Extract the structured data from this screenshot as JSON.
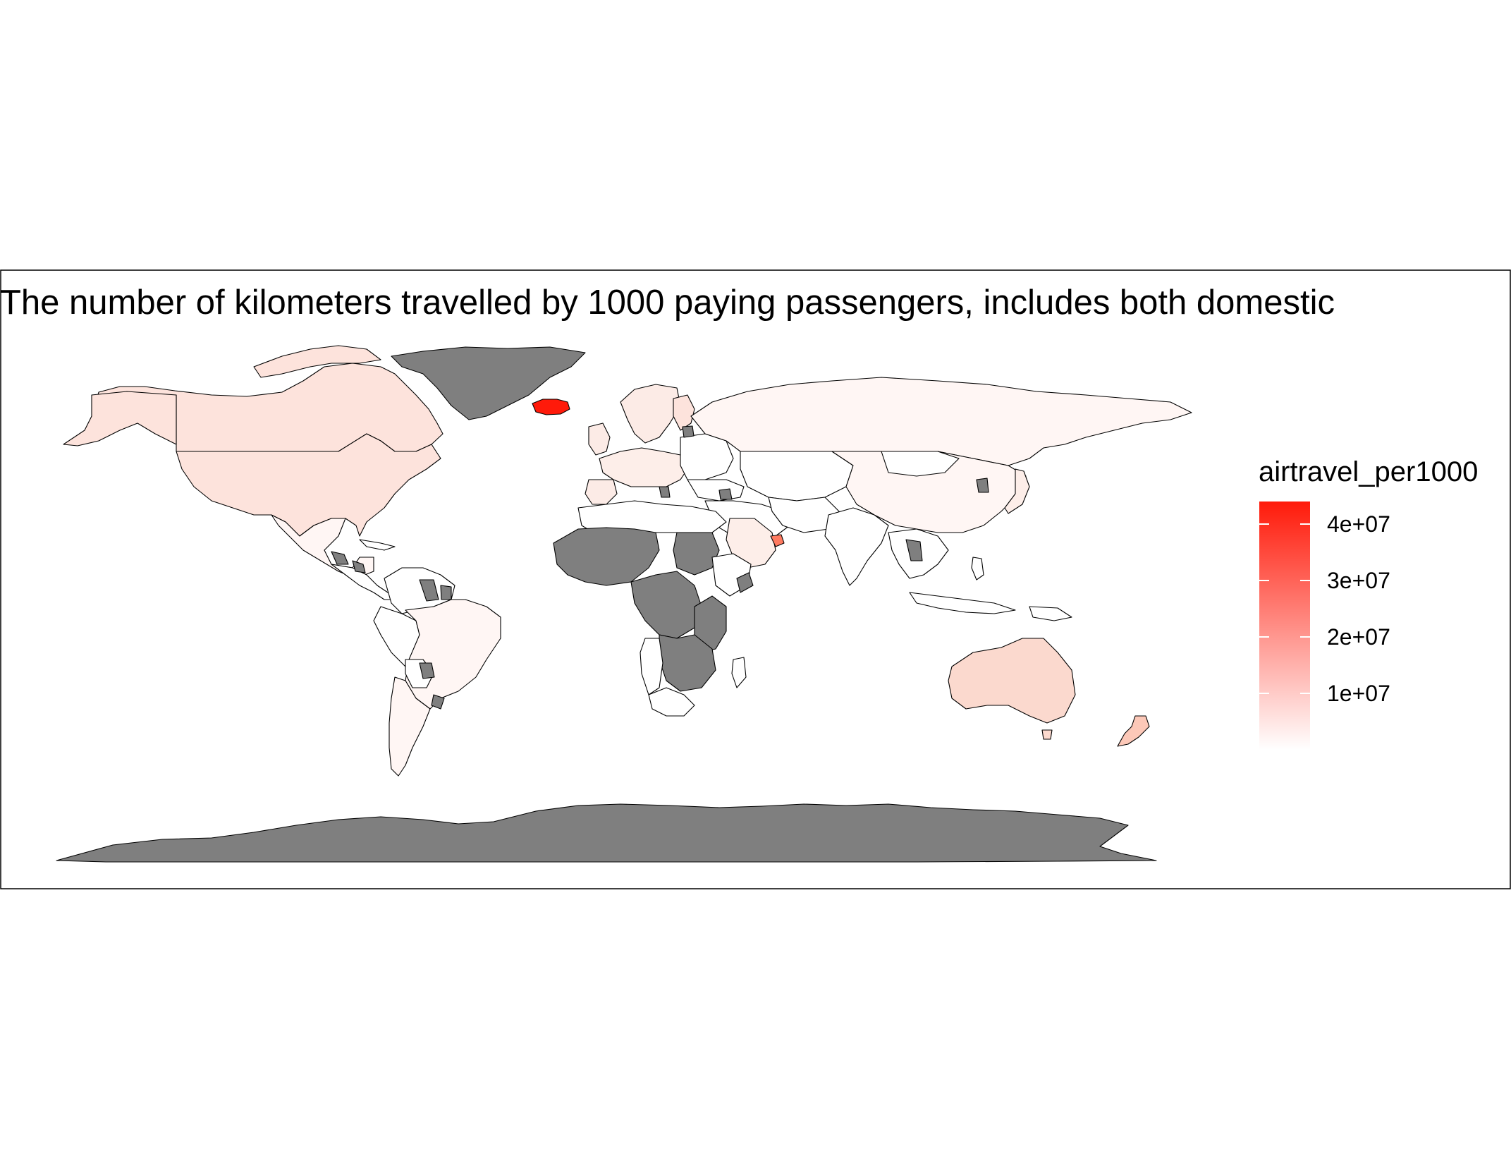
{
  "title": "The number of kilometers travelled by 1000 paying passengers, includes both domestic",
  "legend": {
    "title": "airtravel_per1000",
    "ticks": [
      "1e+07",
      "2e+07",
      "3e+07",
      "4e+07"
    ],
    "tick_values": [
      10000000,
      20000000,
      30000000,
      40000000
    ],
    "range": [
      0,
      44000000
    ],
    "color_low": "#ffffff",
    "color_high": "#ff1a0a"
  },
  "colors": {
    "na_fill": "#7f7f7f",
    "border": "#000000",
    "background": "#ffffff"
  },
  "chart_data": {
    "type": "choropleth",
    "variable": "airtravel_per1000",
    "regions_with_data": [
      {
        "region": "Iceland",
        "approx_value": 43000000
      },
      {
        "region": "United Arab Emirates",
        "approx_value": 30000000
      },
      {
        "region": "New Zealand",
        "approx_value": 8000000
      },
      {
        "region": "Australia",
        "approx_value": 6000000
      },
      {
        "region": "Canada",
        "approx_value": 4000000
      },
      {
        "region": "United States",
        "approx_value": 4000000
      },
      {
        "region": "Russia",
        "approx_value": 1000000
      },
      {
        "region": "China",
        "approx_value": 500000
      },
      {
        "region": "Brazil",
        "approx_value": 700000
      },
      {
        "region": "Saudi Arabia",
        "approx_value": 3000000
      }
    ],
    "missing_regions": [
      "Greenland",
      "Antarctica",
      "Central/West Africa",
      "Southern Africa (part)",
      "Paraguay",
      "Uruguay",
      "Laos",
      "North Korea",
      "Guyana",
      "Suriname",
      "Somalia"
    ]
  }
}
